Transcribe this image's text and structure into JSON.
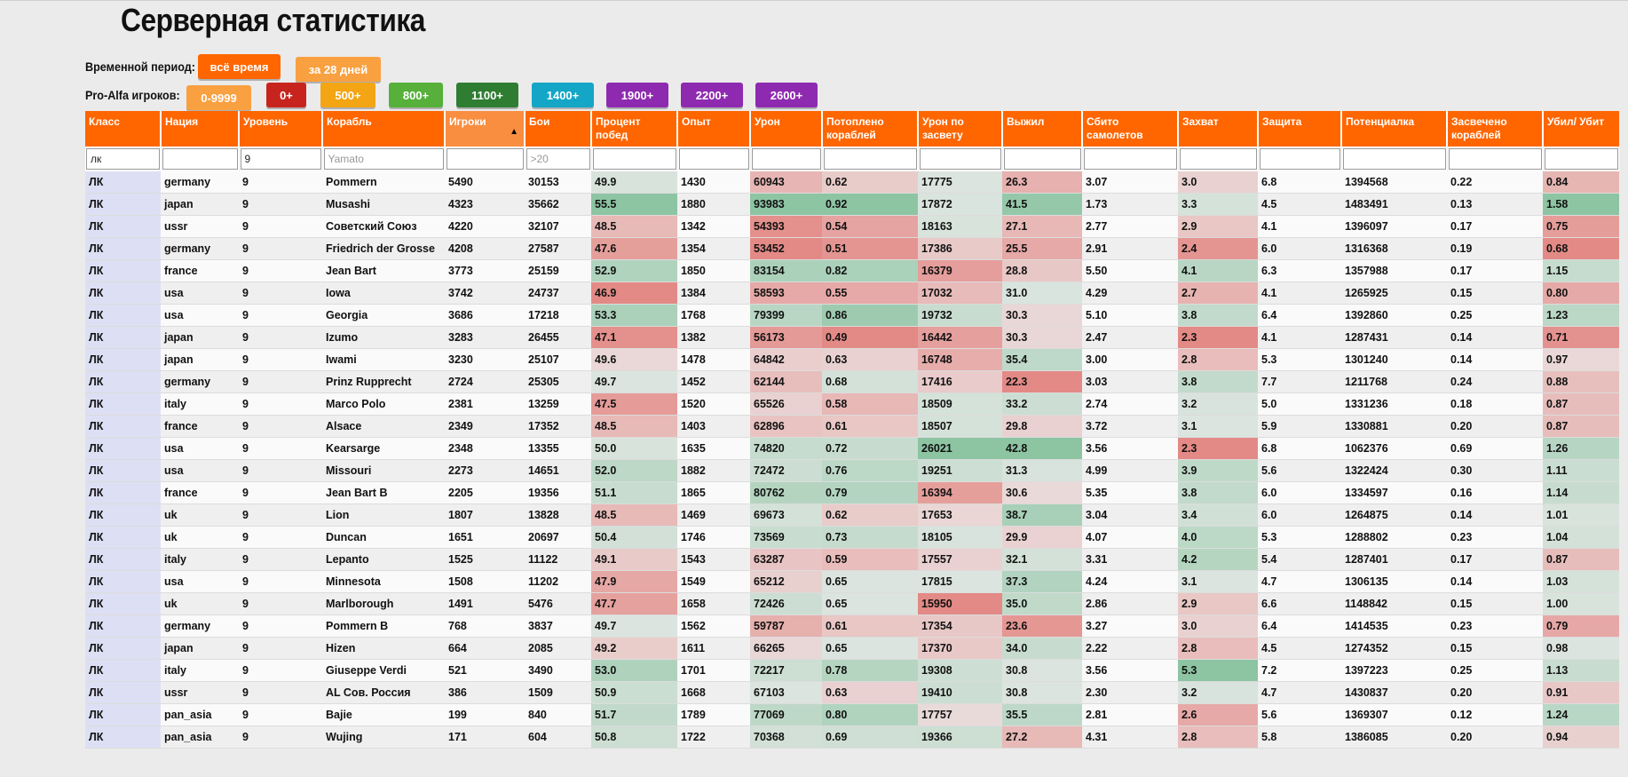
{
  "title": "Серверная статистика",
  "period": {
    "label": "Временной период:",
    "options": [
      {
        "label": "всё время",
        "color": "#ff6600",
        "active": true
      },
      {
        "label": "за 28 дней",
        "color": "#f9a040",
        "active": false
      }
    ]
  },
  "proalfa": {
    "label": "Pro-Alfa игроков:",
    "options": [
      {
        "label": "0-9999",
        "color": "#f9a040"
      },
      {
        "label": "0+",
        "color": "#c8241e"
      },
      {
        "label": "500+",
        "color": "#f3a513"
      },
      {
        "label": "800+",
        "color": "#56b03a"
      },
      {
        "label": "1100+",
        "color": "#2e7d32"
      },
      {
        "label": "1400+",
        "color": "#14a6c6"
      },
      {
        "label": "1900+",
        "color": "#8e2ab0"
      },
      {
        "label": "2200+",
        "color": "#8e2ab0"
      },
      {
        "label": "2600+",
        "color": "#8e2ab0"
      }
    ]
  },
  "columns": [
    "Класс",
    "Нация",
    "Уровень",
    "Корабль",
    "Игроки",
    "Бои",
    "Процент побед",
    "Опыт",
    "Урон",
    "Потоплено кораблей",
    "Урон по засвету",
    "Выжил",
    "Сбито самолетов",
    "Захват",
    "Защита",
    "Потенциалка",
    "Засвечено кораблей",
    "Убил/ Убит"
  ],
  "filters": {
    "values": [
      "лк",
      "",
      "9",
      "",
      "",
      "",
      "",
      "",
      "",
      "",
      "",
      "",
      "",
      "",
      "",
      "",
      "",
      ""
    ],
    "placeholders": [
      "",
      "",
      "",
      "Yamato",
      "",
      ">20",
      "",
      "",
      "",
      "",
      "",
      "",
      "",
      "",
      "",
      "",
      "",
      ""
    ]
  },
  "rows": [
    [
      "ЛК",
      "germany",
      "9",
      "Pommern",
      "5490",
      "30153",
      "49.9",
      "1430",
      "60943",
      "0.62",
      "17775",
      "26.3",
      "3.07",
      "3.0",
      "6.8",
      "1394568",
      "0.22",
      "0.84"
    ],
    [
      "ЛК",
      "japan",
      "9",
      "Musashi",
      "4323",
      "35662",
      "55.5",
      "1880",
      "93983",
      "0.92",
      "17872",
      "41.5",
      "1.73",
      "3.3",
      "4.5",
      "1483491",
      "0.13",
      "1.58"
    ],
    [
      "ЛК",
      "ussr",
      "9",
      "Советский Союз",
      "4220",
      "32107",
      "48.5",
      "1342",
      "54393",
      "0.54",
      "18163",
      "27.1",
      "2.77",
      "2.9",
      "4.1",
      "1396097",
      "0.17",
      "0.75"
    ],
    [
      "ЛК",
      "germany",
      "9",
      "Friedrich der Grosse",
      "4208",
      "27587",
      "47.6",
      "1354",
      "53452",
      "0.51",
      "17386",
      "25.5",
      "2.91",
      "2.4",
      "6.0",
      "1316368",
      "0.19",
      "0.68"
    ],
    [
      "ЛК",
      "france",
      "9",
      "Jean Bart",
      "3773",
      "25159",
      "52.9",
      "1850",
      "83154",
      "0.82",
      "16379",
      "28.8",
      "5.50",
      "4.1",
      "6.3",
      "1357988",
      "0.17",
      "1.15"
    ],
    [
      "ЛК",
      "usa",
      "9",
      "Iowa",
      "3742",
      "24737",
      "46.9",
      "1384",
      "58593",
      "0.55",
      "17032",
      "31.0",
      "4.29",
      "2.7",
      "4.1",
      "1265925",
      "0.15",
      "0.80"
    ],
    [
      "ЛК",
      "usa",
      "9",
      "Georgia",
      "3686",
      "17218",
      "53.3",
      "1768",
      "79399",
      "0.86",
      "19732",
      "30.3",
      "5.10",
      "3.8",
      "6.4",
      "1392860",
      "0.25",
      "1.23"
    ],
    [
      "ЛК",
      "japan",
      "9",
      "Izumo",
      "3283",
      "26455",
      "47.1",
      "1382",
      "56173",
      "0.49",
      "16442",
      "30.3",
      "2.47",
      "2.3",
      "4.1",
      "1287431",
      "0.14",
      "0.71"
    ],
    [
      "ЛК",
      "japan",
      "9",
      "Iwami",
      "3230",
      "25107",
      "49.6",
      "1478",
      "64842",
      "0.63",
      "16748",
      "35.4",
      "3.00",
      "2.8",
      "5.3",
      "1301240",
      "0.14",
      "0.97"
    ],
    [
      "ЛК",
      "germany",
      "9",
      "Prinz Rupprecht",
      "2724",
      "25305",
      "49.7",
      "1452",
      "62144",
      "0.68",
      "17416",
      "22.3",
      "3.03",
      "3.8",
      "7.7",
      "1211768",
      "0.24",
      "0.88"
    ],
    [
      "ЛК",
      "italy",
      "9",
      "Marco Polo",
      "2381",
      "13259",
      "47.5",
      "1520",
      "65526",
      "0.58",
      "18509",
      "33.2",
      "2.74",
      "3.2",
      "5.0",
      "1331236",
      "0.18",
      "0.87"
    ],
    [
      "ЛК",
      "france",
      "9",
      "Alsace",
      "2349",
      "17352",
      "48.5",
      "1403",
      "62896",
      "0.61",
      "18507",
      "29.8",
      "3.72",
      "3.1",
      "5.9",
      "1330881",
      "0.20",
      "0.87"
    ],
    [
      "ЛК",
      "usa",
      "9",
      "Kearsarge",
      "2348",
      "13355",
      "50.0",
      "1635",
      "74820",
      "0.72",
      "26021",
      "42.8",
      "3.56",
      "2.3",
      "6.8",
      "1062376",
      "0.69",
      "1.26"
    ],
    [
      "ЛК",
      "usa",
      "9",
      "Missouri",
      "2273",
      "14651",
      "52.0",
      "1882",
      "72472",
      "0.76",
      "19251",
      "31.3",
      "4.99",
      "3.9",
      "5.6",
      "1322424",
      "0.30",
      "1.11"
    ],
    [
      "ЛК",
      "france",
      "9",
      "Jean Bart B",
      "2205",
      "19356",
      "51.1",
      "1865",
      "80762",
      "0.79",
      "16394",
      "30.6",
      "5.35",
      "3.8",
      "6.0",
      "1334597",
      "0.16",
      "1.14"
    ],
    [
      "ЛК",
      "uk",
      "9",
      "Lion",
      "1807",
      "13828",
      "48.5",
      "1469",
      "69673",
      "0.62",
      "17653",
      "38.7",
      "3.04",
      "3.4",
      "6.0",
      "1264875",
      "0.14",
      "1.01"
    ],
    [
      "ЛК",
      "uk",
      "9",
      "Duncan",
      "1651",
      "20697",
      "50.4",
      "1746",
      "73569",
      "0.73",
      "18105",
      "29.9",
      "4.07",
      "4.0",
      "5.3",
      "1288802",
      "0.23",
      "1.04"
    ],
    [
      "ЛК",
      "italy",
      "9",
      "Lepanto",
      "1525",
      "11122",
      "49.1",
      "1543",
      "63287",
      "0.59",
      "17557",
      "32.1",
      "3.31",
      "4.2",
      "5.4",
      "1287401",
      "0.17",
      "0.87"
    ],
    [
      "ЛК",
      "usa",
      "9",
      "Minnesota",
      "1508",
      "11202",
      "47.9",
      "1549",
      "65212",
      "0.65",
      "17815",
      "37.3",
      "4.24",
      "3.1",
      "4.7",
      "1306135",
      "0.14",
      "1.03"
    ],
    [
      "ЛК",
      "uk",
      "9",
      "Marlborough",
      "1491",
      "5476",
      "47.7",
      "1658",
      "72426",
      "0.65",
      "15950",
      "35.0",
      "2.86",
      "2.9",
      "6.6",
      "1148842",
      "0.15",
      "1.00"
    ],
    [
      "ЛК",
      "germany",
      "9",
      "Pommern B",
      "768",
      "3837",
      "49.7",
      "1562",
      "59787",
      "0.61",
      "17354",
      "23.6",
      "3.27",
      "3.0",
      "6.4",
      "1414535",
      "0.23",
      "0.79"
    ],
    [
      "ЛК",
      "japan",
      "9",
      "Hizen",
      "664",
      "2085",
      "49.2",
      "1611",
      "66265",
      "0.65",
      "17370",
      "34.0",
      "2.22",
      "2.8",
      "4.5",
      "1274352",
      "0.15",
      "0.98"
    ],
    [
      "ЛК",
      "italy",
      "9",
      "Giuseppe Verdi",
      "521",
      "3490",
      "53.0",
      "1701",
      "72217",
      "0.78",
      "19308",
      "30.8",
      "3.56",
      "5.3",
      "7.2",
      "1397223",
      "0.25",
      "1.13"
    ],
    [
      "ЛК",
      "ussr",
      "9",
      "AL Сов. Россия",
      "386",
      "1509",
      "50.9",
      "1668",
      "67103",
      "0.63",
      "19410",
      "30.8",
      "2.30",
      "3.2",
      "4.7",
      "1430837",
      "0.20",
      "0.91"
    ],
    [
      "ЛК",
      "pan_asia",
      "9",
      "Bajie",
      "199",
      "840",
      "51.7",
      "1789",
      "77069",
      "0.80",
      "17757",
      "35.5",
      "2.81",
      "2.6",
      "5.6",
      "1369307",
      "0.12",
      "1.24"
    ],
    [
      "ЛК",
      "pan_asia",
      "9",
      "Wujing",
      "171",
      "604",
      "50.8",
      "1722",
      "70368",
      "0.69",
      "19366",
      "27.2",
      "4.31",
      "2.8",
      "5.8",
      "1386085",
      "0.20",
      "0.94"
    ]
  ],
  "colors": {
    "header": "#ff6600",
    "class_cell": "#dde0f4",
    "good": "#2f9e5a",
    "bad": "#dc2a22"
  }
}
